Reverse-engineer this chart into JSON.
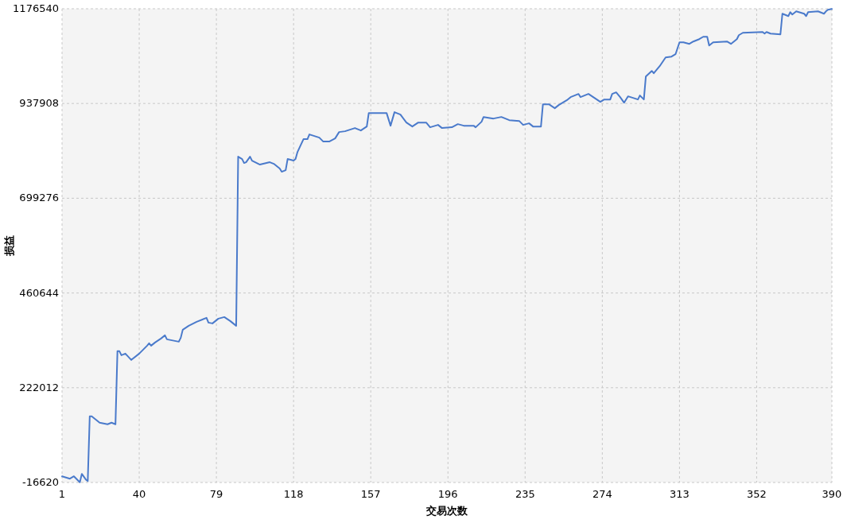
{
  "chart_data": {
    "type": "line",
    "xlabel": "交易次数",
    "ylabel": "损益",
    "xlim": [
      1,
      390
    ],
    "ylim": [
      -16620,
      1176540
    ],
    "xticks": [
      1,
      40,
      79,
      118,
      157,
      196,
      235,
      274,
      313,
      352,
      390
    ],
    "yticks": [
      -16620,
      222012,
      460644,
      699276,
      937908,
      1176540
    ],
    "grid": true,
    "series": [
      {
        "color": "#4a7acb",
        "x": [
          1,
          5,
          7,
          10,
          11,
          13,
          14,
          15,
          16,
          20,
          24,
          26,
          28,
          29,
          30,
          31,
          33,
          36,
          40,
          42,
          44,
          45,
          46,
          48,
          51,
          53,
          54,
          60,
          61,
          62,
          65,
          69,
          74,
          75,
          77,
          80,
          83,
          86,
          89,
          90,
          92,
          93,
          94,
          96,
          97,
          101,
          106,
          108,
          111,
          112,
          114,
          115,
          118,
          119,
          120,
          123,
          125,
          126,
          131,
          133,
          136,
          139,
          141,
          144,
          149,
          152,
          155,
          156,
          165,
          167,
          169,
          172,
          175,
          178,
          181,
          185,
          187,
          191,
          193,
          198,
          201,
          204,
          209,
          210,
          213,
          214,
          219,
          223,
          227,
          232,
          234,
          237,
          239,
          243,
          244,
          247,
          250,
          252,
          256,
          258,
          262,
          263,
          267,
          270,
          273,
          275,
          278,
          279,
          281,
          283,
          285,
          287,
          292,
          293,
          295,
          296,
          299,
          300,
          303,
          306,
          309,
          311,
          313,
          315,
          318,
          320,
          323,
          325,
          327,
          328,
          330,
          337,
          339,
          342,
          343,
          345,
          355,
          356,
          357,
          359,
          364,
          365,
          368,
          369,
          370,
          372,
          376,
          377,
          378,
          383,
          386,
          387,
          388,
          390
        ],
        "values": [
          -1000,
          -7000,
          -1000,
          -16000,
          5000,
          -9000,
          -13000,
          150000,
          150000,
          134000,
          130000,
          134000,
          130000,
          314000,
          314000,
          304000,
          308000,
          292000,
          308000,
          318000,
          328000,
          334000,
          328000,
          336000,
          346000,
          354000,
          344000,
          338000,
          348000,
          368000,
          378000,
          388000,
          398000,
          386000,
          384000,
          396000,
          400000,
          390000,
          378000,
          804000,
          798000,
          788000,
          790000,
          804000,
          794000,
          784000,
          790000,
          786000,
          774000,
          766000,
          770000,
          798000,
          794000,
          798000,
          816000,
          848000,
          848000,
          860000,
          852000,
          842000,
          842000,
          850000,
          866000,
          868000,
          876000,
          870000,
          880000,
          914000,
          914000,
          882000,
          916000,
          910000,
          890000,
          880000,
          890000,
          890000,
          878000,
          884000,
          876000,
          878000,
          886000,
          882000,
          882000,
          878000,
          892000,
          904000,
          900000,
          904000,
          896000,
          894000,
          884000,
          888000,
          880000,
          880000,
          936000,
          936000,
          926000,
          934000,
          946000,
          954000,
          962000,
          954000,
          962000,
          952000,
          942000,
          948000,
          948000,
          962000,
          966000,
          954000,
          940000,
          956000,
          948000,
          958000,
          948000,
          1006000,
          1020000,
          1014000,
          1032000,
          1054000,
          1056000,
          1062000,
          1092000,
          1092000,
          1088000,
          1094000,
          1100000,
          1106000,
          1106000,
          1084000,
          1092000,
          1094000,
          1088000,
          1100000,
          1110000,
          1116000,
          1118000,
          1114000,
          1118000,
          1114000,
          1112000,
          1164000,
          1158000,
          1168000,
          1162000,
          1170000,
          1164000,
          1158000,
          1168000,
          1170000,
          1164000,
          1170000,
          1174000,
          1176000
        ]
      }
    ]
  }
}
